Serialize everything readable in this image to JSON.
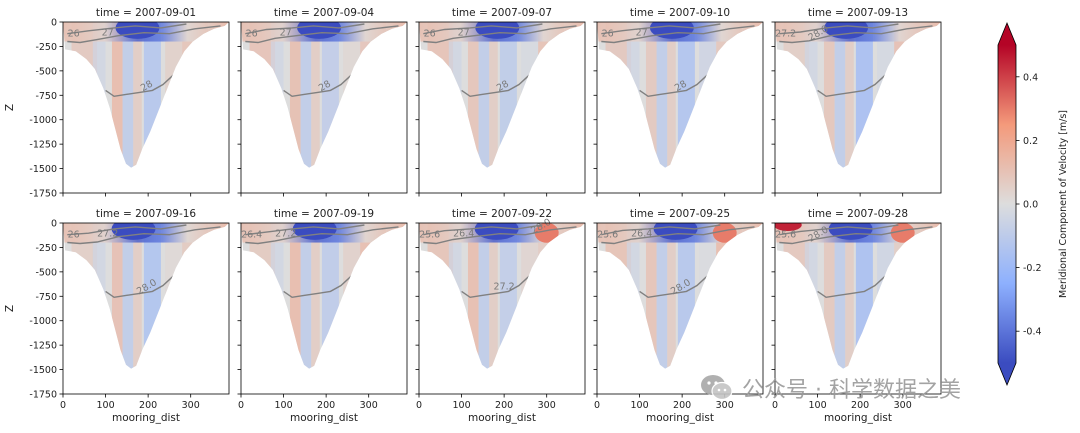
{
  "chart_data": {
    "type": "heatmap",
    "panels": [
      {
        "title": "time = 2007-09-01",
        "contour_labels": [
          "26",
          "27",
          "28"
        ]
      },
      {
        "title": "time = 2007-09-04",
        "contour_labels": [
          "26",
          "27",
          "28"
        ]
      },
      {
        "title": "time = 2007-09-07",
        "contour_labels": [
          "26",
          "27",
          "28"
        ]
      },
      {
        "title": "time = 2007-09-10",
        "contour_labels": [
          "26",
          "27",
          "28"
        ]
      },
      {
        "title": "time = 2007-09-13",
        "contour_labels": [
          "27.2",
          "28.0"
        ]
      },
      {
        "title": "time = 2007-09-16",
        "contour_labels": [
          "26",
          "27.2",
          "28.0"
        ]
      },
      {
        "title": "time = 2007-09-19",
        "contour_labels": [
          "26.4",
          "27.2"
        ]
      },
      {
        "title": "time = 2007-09-22",
        "contour_labels": [
          "25.6",
          "26.4",
          "27.2",
          "28.0"
        ]
      },
      {
        "title": "time = 2007-09-25",
        "contour_labels": [
          "25.6",
          "26.4",
          "28.0"
        ]
      },
      {
        "title": "time = 2007-09-28",
        "contour_labels": [
          "25.6",
          "28.0"
        ]
      }
    ],
    "xlabel": "mooring_dist",
    "ylabel": "Z",
    "xlim": [
      0,
      390
    ],
    "ylim": [
      -1750,
      0
    ],
    "x_ticks": [
      0,
      100,
      200,
      300
    ],
    "y_ticks": [
      0,
      -250,
      -500,
      -750,
      -1000,
      -1250,
      -1500,
      -1750
    ],
    "colorbar": {
      "label": "Meridional Component of Velocity [m/s]",
      "range": [
        -0.5,
        0.5
      ],
      "ticks": [
        0.4,
        0.2,
        0.0,
        -0.2,
        -0.4
      ],
      "colormap": "coolwarm"
    }
  },
  "watermark": {
    "text": "公众号 · 科学数据之美",
    "icon": "wechat-icon"
  },
  "colors": {
    "negative": "#3b4cc0",
    "neutral": "#dddddd",
    "positive": "#b40426",
    "contour": "#808080"
  }
}
